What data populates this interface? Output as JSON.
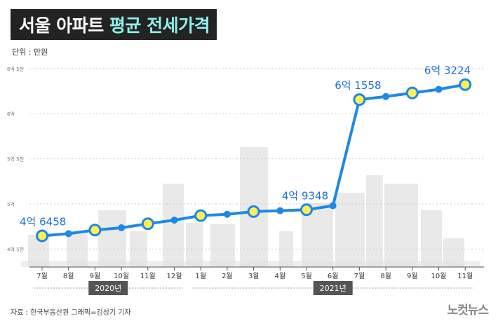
{
  "header": {
    "title_plain": "서울 아파트 ",
    "title_accent": "평균 전세가격",
    "unit": "단위 : 만원"
  },
  "colors": {
    "line": "#1e88e5",
    "marker_fill": "#ffee58",
    "label": "#1e6fd6",
    "accent": "#8ff0ea",
    "title_bg": "#232323",
    "skyline": "#e2e2e2"
  },
  "footer": {
    "source": "자료 : 한국부동산원    그래픽=김성기 기자",
    "logo": "노컷뉴스"
  },
  "chart_data": {
    "type": "line",
    "ylim": [
      43000,
      66000
    ],
    "y_ticks": [
      {
        "value": 45000,
        "label": "4억 5천"
      },
      {
        "value": 50000,
        "label": "5억"
      },
      {
        "value": 55000,
        "label": "5억 5천"
      },
      {
        "value": 60000,
        "label": "6억"
      },
      {
        "value": 65000,
        "label": "6억 5천"
      }
    ],
    "categories": [
      "7월",
      "8월",
      "9월",
      "10월",
      "11월",
      "12월",
      "1월",
      "2월",
      "3월",
      "4월",
      "5월",
      "6월",
      "7월",
      "8월",
      "9월",
      "10월",
      "11월"
    ],
    "year_groups": [
      {
        "label": "2020년",
        "start": 0,
        "end": 5
      },
      {
        "label": "2021년",
        "start": 6,
        "end": 16
      }
    ],
    "values": [
      46458,
      46700,
      47100,
      47350,
      47800,
      48200,
      48700,
      48850,
      49150,
      49250,
      49348,
      49800,
      61558,
      61900,
      62300,
      62700,
      63224
    ],
    "markers": [
      0,
      2,
      4,
      6,
      8,
      10,
      12,
      14,
      16
    ],
    "annotations": [
      {
        "index": 0,
        "text": "4억 6458"
      },
      {
        "index": 10,
        "text": "4억 9348"
      },
      {
        "index": 12,
        "text": "6억 1558"
      },
      {
        "index": 16,
        "text": "6억 3224"
      }
    ]
  }
}
